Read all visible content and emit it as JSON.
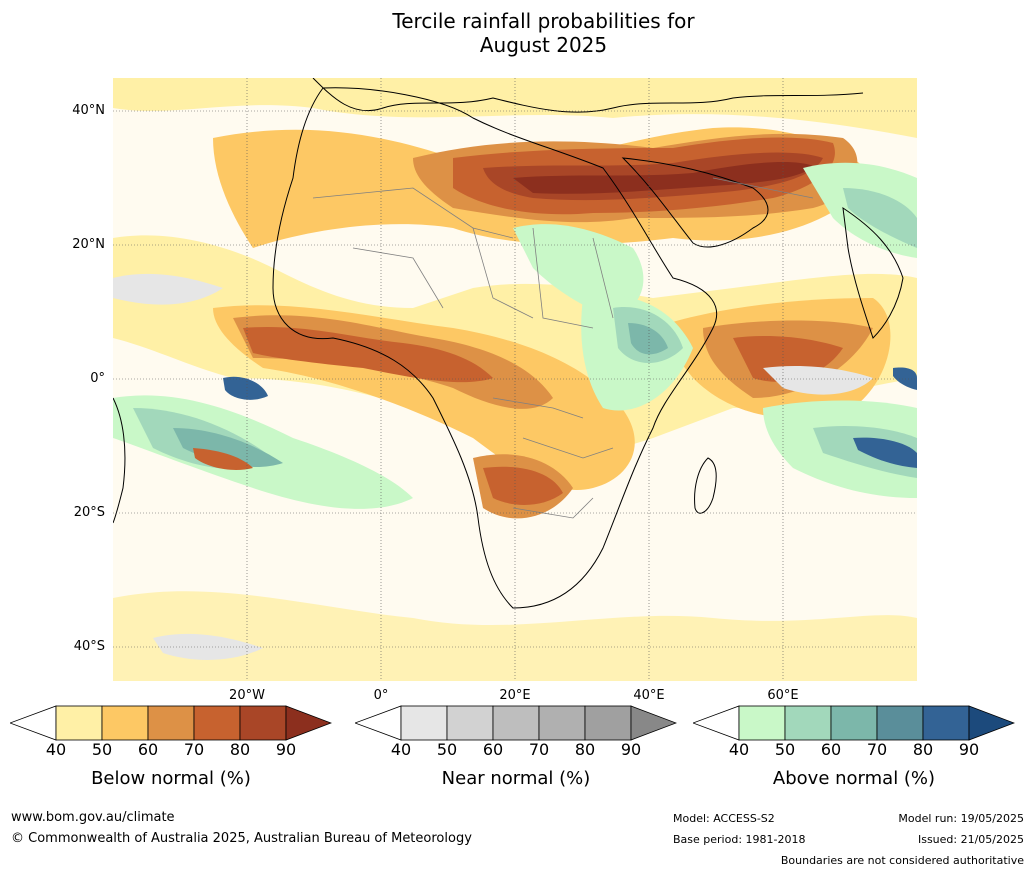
{
  "title_line1": "Tercile rainfall probabilities for",
  "title_line2": "August 2025",
  "lat_labels": [
    "40°N",
    "20°N",
    "0°",
    "20°S",
    "40°S"
  ],
  "lon_labels": [
    "20°W",
    "0°",
    "20°E",
    "40°E",
    "60°E"
  ],
  "legends": {
    "below": {
      "title": "Below normal (%)",
      "ticks": [
        "40",
        "50",
        "60",
        "70",
        "80",
        "90"
      ],
      "colors": [
        "#fff0a6",
        "#fdc864",
        "#dd9146",
        "#c7622f",
        "#a94627",
        "#8c2f1e"
      ]
    },
    "near": {
      "title": "Near normal (%)",
      "ticks": [
        "40",
        "50",
        "60",
        "70",
        "80",
        "90"
      ],
      "colors": [
        "#e6e6e6",
        "#d2d2d2",
        "#bebebe",
        "#b0b0b0",
        "#a0a0a0",
        "#888888"
      ]
    },
    "above": {
      "title": "Above normal (%)",
      "ticks": [
        "40",
        "50",
        "60",
        "70",
        "80",
        "90"
      ],
      "colors": [
        "#c9f8c8",
        "#a2d8bb",
        "#7cb7aa",
        "#5a8e9a",
        "#336395",
        "#1c4a7c"
      ]
    }
  },
  "footer": {
    "url": "www.bom.gov.au/climate",
    "copyright": "© Commonwealth of Australia 2025, Australian Bureau of Meteorology",
    "model": "Model: ACCESS-S2",
    "base_period": "Base period: 1981-2018",
    "model_run": "Model run: 19/05/2025",
    "issued": "Issued: 21/05/2025",
    "boundaries": "Boundaries are not considered authoritative"
  }
}
